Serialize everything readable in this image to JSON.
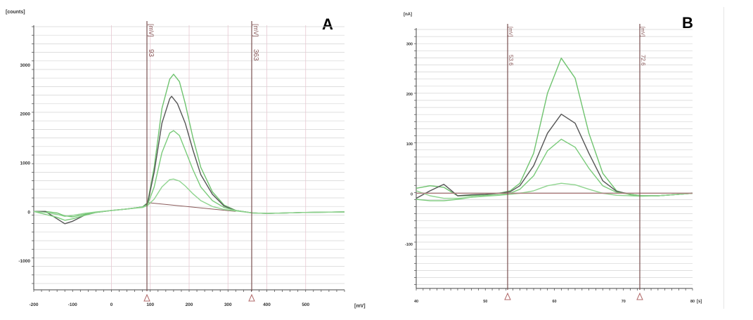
{
  "chart_data": [
    {
      "type": "line",
      "panel_label": "A",
      "y_unit": "[counts]",
      "x_unit": "[mV]",
      "xlim": [
        -200,
        600
      ],
      "ylim": [
        -1600,
        3800
      ],
      "x_ticks": [
        "-200",
        "-100",
        "0",
        "100",
        "200",
        "300",
        "400",
        "500"
      ],
      "y_ticks": [
        "3000",
        "2000",
        "1000",
        "0",
        "-1000"
      ],
      "grid": true,
      "markers": [
        {
          "unit": "[mV]",
          "value": "93"
        },
        {
          "unit": "[mV]",
          "value": "363"
        }
      ],
      "baseline": {
        "x": [
          93,
          320
        ],
        "y": [
          180,
          0
        ]
      },
      "series": [
        {
          "color": "#6fc36f",
          "x": [
            -200,
            -170,
            -140,
            -120,
            -100,
            -70,
            -40,
            0,
            40,
            80,
            93,
            110,
            130,
            150,
            160,
            175,
            190,
            210,
            230,
            260,
            290,
            320,
            363,
            400,
            450,
            500,
            600
          ],
          "y": [
            0,
            0,
            -30,
            -90,
            -110,
            -60,
            -20,
            20,
            50,
            90,
            180,
            900,
            2100,
            2700,
            2800,
            2650,
            2200,
            1500,
            900,
            400,
            130,
            20,
            -30,
            -40,
            -30,
            -20,
            -10
          ]
        },
        {
          "color": "#555555",
          "x": [
            -200,
            -170,
            -140,
            -120,
            -100,
            -70,
            -40,
            0,
            40,
            80,
            93,
            110,
            130,
            150,
            155,
            170,
            190,
            210,
            230,
            260,
            290,
            320,
            363,
            400,
            450,
            500,
            600
          ],
          "y": [
            0,
            0,
            -150,
            -250,
            -200,
            -80,
            -20,
            20,
            50,
            90,
            160,
            800,
            1800,
            2300,
            2350,
            2200,
            1800,
            1250,
            750,
            350,
            110,
            20,
            -30,
            -40,
            -30,
            -20,
            -10
          ]
        },
        {
          "color": "#7acb7a",
          "x": [
            -200,
            -170,
            -140,
            -120,
            -100,
            -70,
            -40,
            0,
            40,
            80,
            93,
            110,
            130,
            150,
            160,
            175,
            190,
            210,
            230,
            260,
            290,
            320,
            363,
            400,
            450,
            500,
            600
          ],
          "y": [
            0,
            -60,
            -120,
            -180,
            -150,
            -80,
            -20,
            20,
            50,
            90,
            140,
            500,
            1200,
            1600,
            1650,
            1550,
            1250,
            850,
            500,
            220,
            80,
            20,
            -30,
            -40,
            -30,
            -20,
            -10
          ]
        },
        {
          "color": "#8fd48f",
          "x": [
            -200,
            -170,
            -140,
            -120,
            -100,
            -70,
            -40,
            0,
            40,
            80,
            93,
            110,
            130,
            150,
            160,
            175,
            190,
            210,
            230,
            260,
            290,
            320,
            363,
            400,
            450,
            500,
            600
          ],
          "y": [
            0,
            -20,
            -60,
            -100,
            -80,
            -40,
            -10,
            20,
            50,
            80,
            120,
            250,
            500,
            650,
            660,
            620,
            520,
            360,
            220,
            100,
            40,
            10,
            -30,
            -40,
            -30,
            -20,
            -10
          ]
        }
      ]
    },
    {
      "type": "line",
      "panel_label": "B",
      "y_unit": "[nA]",
      "x_unit": "[s]",
      "xlim": [
        40,
        80
      ],
      "ylim": [
        -190,
        330
      ],
      "x_ticks": [
        "40",
        "50",
        "60",
        "70",
        "80"
      ],
      "y_ticks": [
        "300",
        "200",
        "100",
        "0",
        "-100"
      ],
      "grid": true,
      "markers": [
        {
          "unit": "[mV]",
          "value": "53.6"
        },
        {
          "unit": "[mV]",
          "value": "72.6"
        }
      ],
      "series": [
        {
          "color": "#6fc36f",
          "x": [
            40,
            42,
            44,
            46,
            48,
            50,
            52,
            53.6,
            55,
            57,
            59,
            61,
            63,
            65,
            67,
            69,
            71,
            72.6,
            75,
            78,
            80
          ],
          "y": [
            10,
            15,
            12,
            -5,
            -5,
            -3,
            0,
            5,
            20,
            80,
            200,
            270,
            230,
            120,
            40,
            5,
            -3,
            -5,
            -5,
            -2,
            0
          ]
        },
        {
          "color": "#555555",
          "x": [
            40,
            42,
            44,
            46,
            48,
            50,
            52,
            53.6,
            55,
            57,
            59,
            61,
            63,
            65,
            67,
            69,
            71,
            72.6,
            75,
            78,
            80
          ],
          "y": [
            -10,
            5,
            18,
            -5,
            -3,
            -2,
            0,
            3,
            15,
            55,
            120,
            158,
            140,
            80,
            25,
            4,
            -2,
            -5,
            -5,
            -2,
            0
          ]
        },
        {
          "color": "#7acb7a",
          "x": [
            40,
            42,
            44,
            46,
            48,
            50,
            52,
            53.6,
            55,
            57,
            59,
            61,
            63,
            65,
            67,
            69,
            71,
            72.6,
            75,
            78,
            80
          ],
          "y": [
            -12,
            -15,
            -15,
            -12,
            -8,
            -5,
            -3,
            0,
            8,
            35,
            85,
            108,
            92,
            50,
            15,
            2,
            -2,
            -5,
            -5,
            -2,
            0
          ]
        },
        {
          "color": "#8fd48f",
          "x": [
            40,
            42,
            44,
            46,
            48,
            50,
            52,
            53.6,
            55,
            57,
            59,
            61,
            63,
            65,
            67,
            69,
            71,
            72.6,
            75,
            78,
            80
          ],
          "y": [
            5,
            -5,
            -10,
            -10,
            -8,
            -6,
            -4,
            -2,
            0,
            5,
            15,
            20,
            17,
            8,
            0,
            -4,
            -5,
            -6,
            -5,
            -2,
            0
          ]
        },
        {
          "color": "#b08080",
          "x": [
            40,
            50,
            53.6,
            60,
            65,
            72.6,
            80
          ],
          "y": [
            0,
            0,
            0,
            0,
            0,
            0,
            0
          ]
        }
      ]
    }
  ]
}
